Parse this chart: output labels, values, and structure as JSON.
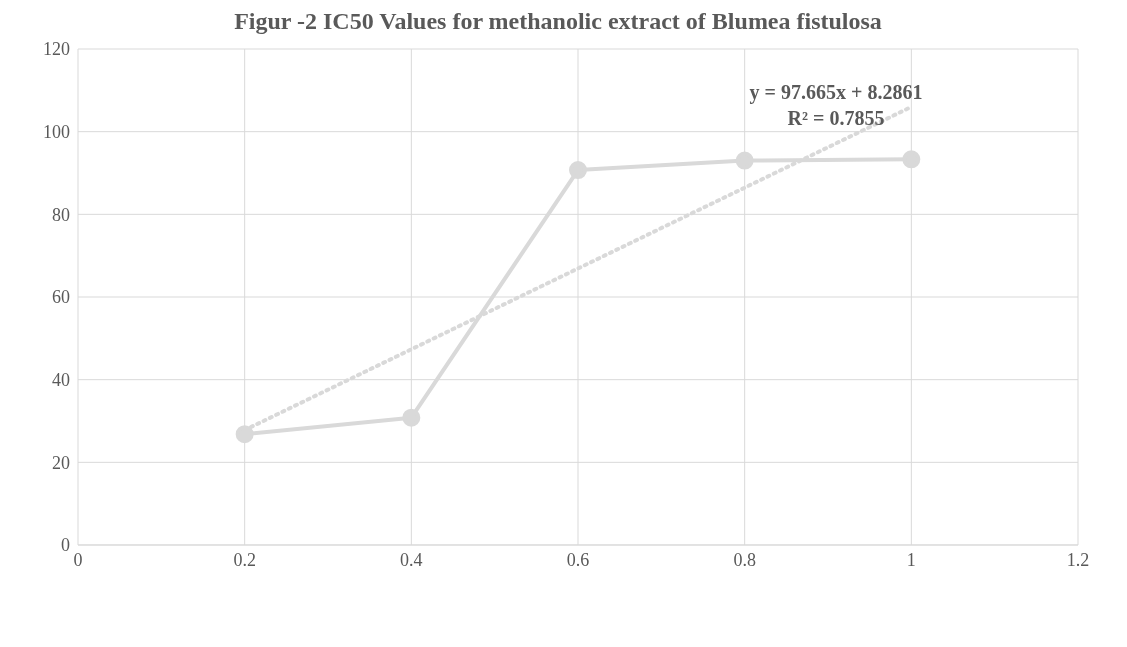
{
  "chart_data": {
    "type": "line",
    "title": "Figur -2 IC50 Values for methanolic extract of Blumea fistulosa",
    "annotations": [
      "y = 97.665x + 8.2861",
      "R² = 0.7855"
    ],
    "x": [
      0.2,
      0.4,
      0.6,
      0.8,
      1
    ],
    "series": [
      {
        "color": "#d9d9d9",
        "values": [
          26.8,
          30.8,
          90.7,
          93,
          93.3
        ],
        "marker": "circle",
        "line_style": "solid"
      },
      {
        "type": "line",
        "color": "#d9d9d9",
        "x": [
          0.2,
          1
        ],
        "values": [
          27.8,
          106
        ],
        "marker": "none",
        "line_style": "dotted"
      }
    ],
    "xlim": [
      0,
      1.2
    ],
    "xticks": [
      0,
      0.2,
      0.4,
      0.6,
      0.8,
      1,
      1.2
    ],
    "ylim": [
      0,
      120
    ],
    "yticks": [
      0,
      20,
      40,
      60,
      80,
      100,
      120
    ],
    "grid": true
  }
}
